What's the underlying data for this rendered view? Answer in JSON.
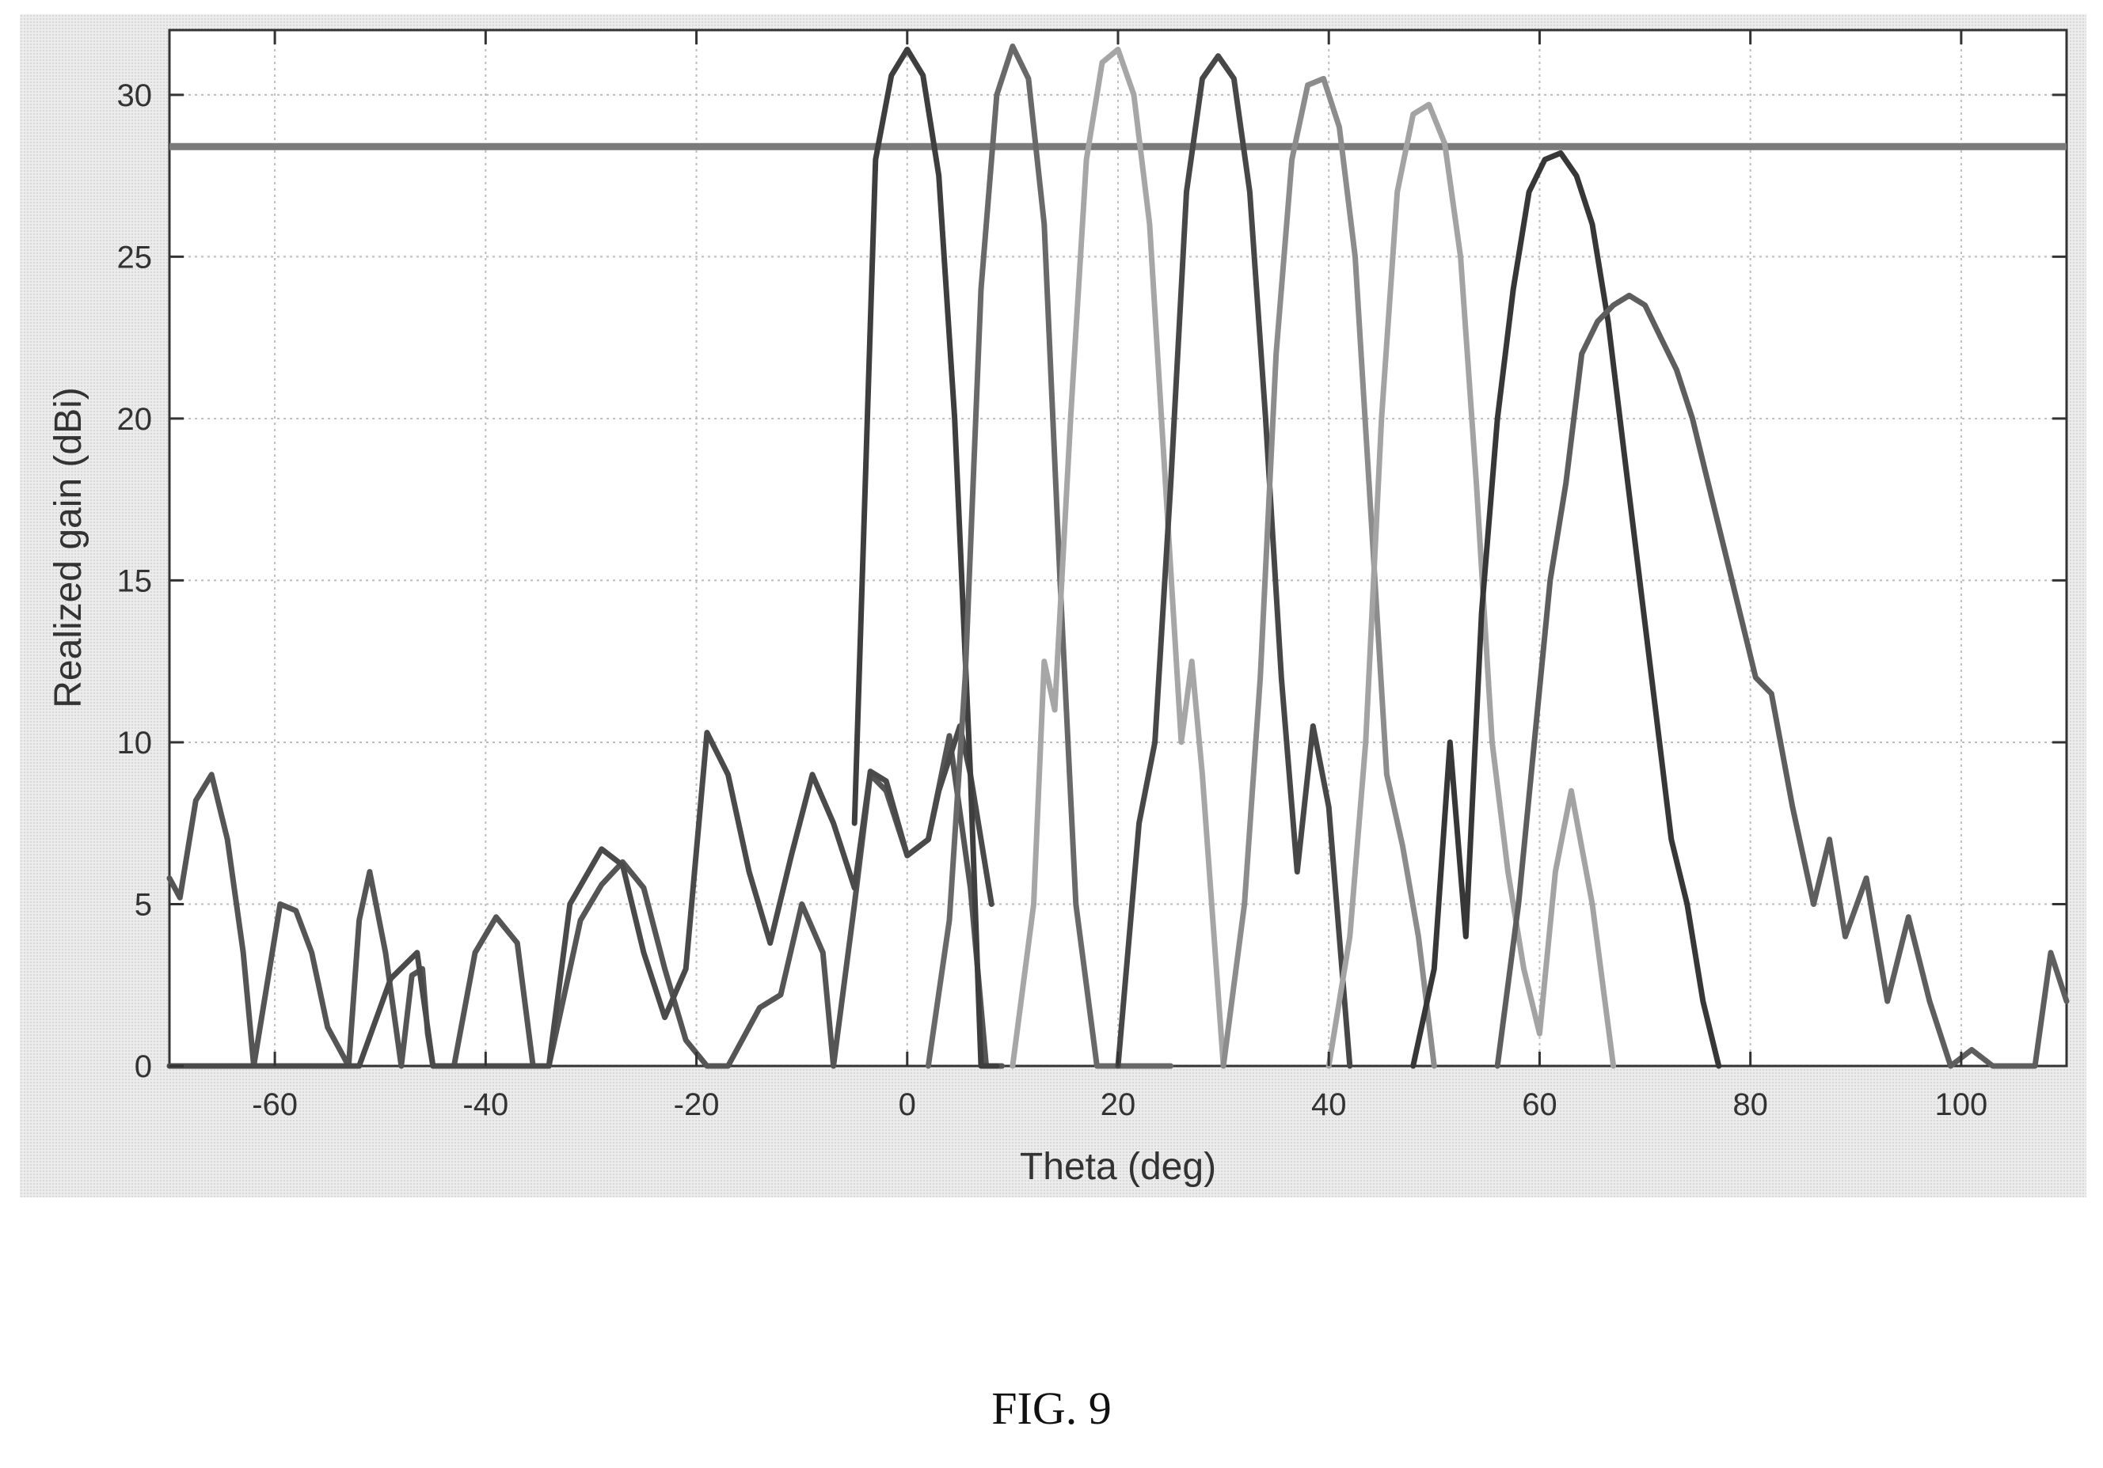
{
  "figure": {
    "caption": "FIG. 9"
  },
  "chart_data": {
    "type": "line",
    "title": "",
    "xlabel": "Theta (deg)",
    "ylabel": "Realized gain (dBi)",
    "xlim": [
      -70,
      110
    ],
    "ylim": [
      0,
      32
    ],
    "xticks": [
      -60,
      -40,
      -20,
      0,
      20,
      40,
      60,
      80,
      100
    ],
    "yticks": [
      0,
      5,
      10,
      15,
      20,
      25,
      30
    ],
    "grid": true,
    "legend": "none",
    "reference_line": {
      "y": 28.4,
      "color": "#7a7a7a"
    },
    "series": [
      {
        "color": "#555555",
        "x": [
          -70,
          -69,
          -67.5,
          -66,
          -64.5,
          -63,
          -62,
          -61,
          -59.5,
          -58,
          -56.5,
          -55,
          -53,
          -52,
          -51,
          -49.5,
          -48,
          -47,
          -46,
          -45.5,
          -45,
          -43,
          -41,
          -39,
          -37,
          -35.5,
          -34,
          -31,
          -29,
          -27,
          -25,
          -23,
          -21,
          -19,
          -17,
          -14,
          -12,
          -10,
          -8,
          -7,
          -5,
          -3.5,
          -2,
          0,
          2,
          3,
          4,
          6,
          7.5,
          9
        ],
        "y": [
          5.8,
          5.2,
          8.2,
          9.0,
          7.0,
          3.5,
          0,
          2.0,
          5.0,
          4.8,
          3.5,
          1.2,
          0,
          4.5,
          6.0,
          3.5,
          0,
          2.8,
          3.0,
          1.0,
          0,
          0,
          3.5,
          4.6,
          3.8,
          0,
          0,
          4.5,
          5.6,
          6.3,
          5.5,
          3.0,
          0.8,
          0,
          0,
          1.8,
          2.2,
          5.0,
          3.5,
          0,
          5.0,
          9.0,
          8.5,
          6.5,
          7.0,
          8.6,
          10.2,
          5.5,
          0,
          0
        ]
      },
      {
        "color": "#4a4a4a",
        "x": [
          -70,
          -69,
          -67.5,
          -66,
          -64.5,
          -63,
          -62,
          -60,
          -58,
          -56,
          -54,
          -52,
          -49,
          -46.5,
          -45,
          -43,
          -40,
          -38,
          -36,
          -34,
          -32,
          -29,
          -27,
          -25,
          -23,
          -21,
          -19,
          -17,
          -15,
          -13,
          -11,
          -9,
          -7,
          -5,
          -3.5,
          -2,
          0,
          2,
          3,
          5,
          6,
          8
        ],
        "y": [
          0,
          0,
          0,
          0,
          0,
          0,
          0,
          0,
          0,
          0,
          0,
          0,
          2.7,
          3.5,
          0,
          0,
          0,
          0,
          0,
          0,
          5.0,
          6.7,
          6.2,
          3.5,
          1.5,
          3.0,
          10.3,
          9.0,
          6.0,
          3.8,
          6.5,
          9.0,
          7.5,
          5.5,
          9.1,
          8.8,
          6.5,
          7.0,
          8.5,
          10.5,
          9.0,
          5.0
        ]
      },
      {
        "color": "#3e3e3e",
        "x": [
          -5,
          -3,
          -1.5,
          0,
          1.5,
          3,
          4.5,
          6,
          7,
          8.5
        ],
        "y": [
          7.5,
          28,
          30.6,
          31.4,
          30.6,
          27.5,
          20,
          9,
          0,
          0
        ]
      },
      {
        "color": "#696969",
        "x": [
          2,
          4,
          5.5,
          7,
          8.5,
          10,
          11.5,
          13,
          14.5,
          16,
          18,
          20,
          21,
          23,
          25
        ],
        "y": [
          0,
          4.5,
          12,
          24,
          30,
          31.5,
          30.5,
          26,
          15,
          5,
          0,
          0,
          0,
          0,
          0
        ]
      },
      {
        "color": "#a6a6a6",
        "x": [
          10,
          12,
          13,
          14,
          15.5,
          17,
          18.5,
          20,
          21.5,
          23,
          24.5,
          26,
          27,
          28,
          30
        ],
        "y": [
          0,
          5,
          12.5,
          11,
          20,
          28,
          31,
          31.4,
          30,
          26,
          18,
          10,
          12.5,
          9,
          0
        ]
      },
      {
        "color": "#474747",
        "x": [
          20,
          22,
          23.5,
          25,
          26.5,
          28,
          29.5,
          31,
          32.5,
          34,
          35.5,
          37,
          38.5,
          40,
          42
        ],
        "y": [
          0,
          7.5,
          10,
          18,
          27,
          30.5,
          31.2,
          30.5,
          27,
          20,
          12,
          6,
          10.5,
          8,
          0
        ]
      },
      {
        "color": "#8c8c8c",
        "x": [
          30,
          32,
          33.5,
          35,
          36.5,
          38,
          39.5,
          41,
          42.5,
          44,
          45.5,
          47,
          48.5,
          50
        ],
        "y": [
          0,
          5,
          12,
          22,
          28,
          30.3,
          30.5,
          29,
          25,
          17,
          9,
          6.8,
          4,
          0
        ]
      },
      {
        "color": "#a3a3a3",
        "x": [
          40,
          42,
          43.5,
          45,
          46.5,
          48,
          49.5,
          51,
          52.5,
          54,
          55.5,
          57,
          58.5,
          60,
          61.5,
          63,
          65,
          67
        ],
        "y": [
          0,
          4,
          10,
          20,
          27,
          29.4,
          29.7,
          28.5,
          25,
          18,
          10,
          6,
          3,
          1,
          6,
          8.5,
          5,
          0
        ]
      },
      {
        "color": "#373737",
        "x": [
          48,
          50,
          51.5,
          53,
          54.5,
          56,
          57.5,
          59,
          60.5,
          62,
          63.5,
          65,
          66.5,
          68,
          69.5,
          71,
          72.5,
          74,
          75.5,
          77
        ],
        "y": [
          0,
          3,
          10,
          4,
          14,
          20,
          24,
          27,
          28,
          28.2,
          27.5,
          26,
          23,
          19,
          15,
          11,
          7,
          5,
          2,
          0
        ]
      },
      {
        "color": "#5e5e5e",
        "x": [
          56,
          58,
          59.5,
          61,
          62.5,
          64,
          65.5,
          67,
          68.5,
          70,
          71.5,
          73,
          74.5,
          76,
          77.5,
          79,
          80.5,
          82,
          84,
          86,
          87.5,
          89,
          91,
          93,
          95,
          97,
          99,
          101,
          103,
          105,
          107,
          108.5,
          110
        ],
        "y": [
          0,
          5,
          10,
          15,
          18,
          22,
          23,
          23.5,
          23.8,
          23.5,
          22.5,
          21.5,
          20,
          18,
          16,
          14,
          12,
          11.5,
          8,
          5,
          7,
          4,
          5.8,
          2,
          4.6,
          2,
          0,
          0.5,
          0,
          0,
          0,
          3.5,
          2
        ]
      }
    ]
  }
}
